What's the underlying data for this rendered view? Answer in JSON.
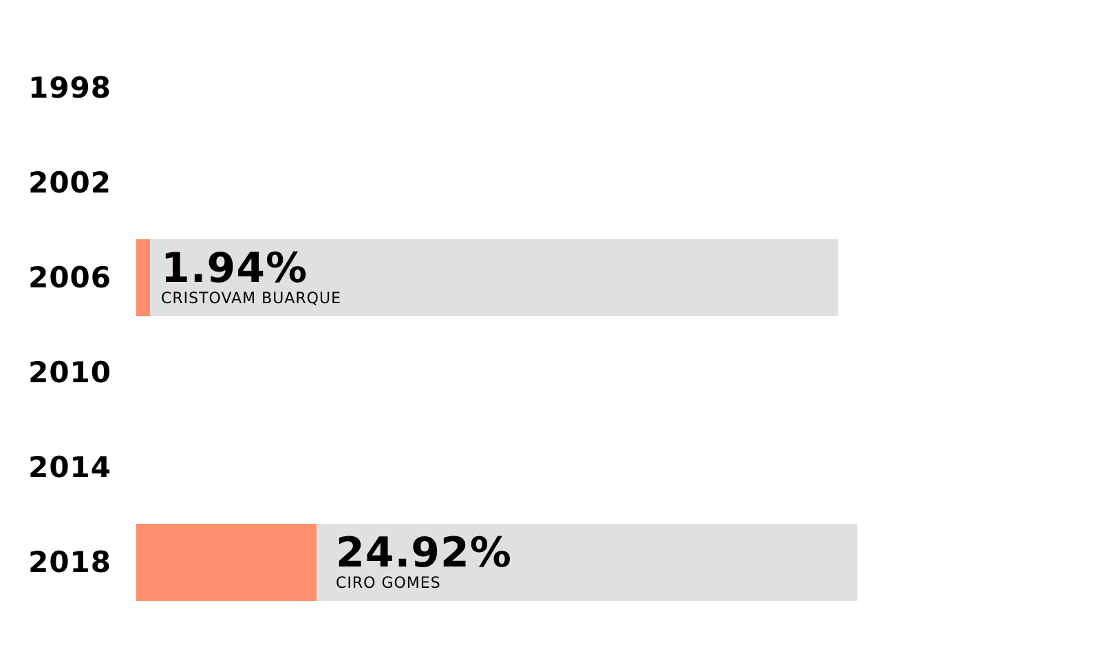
{
  "chart_data": {
    "type": "bar",
    "orientation": "horizontal",
    "categories": [
      "1998",
      "2002",
      "2006",
      "2010",
      "2014",
      "2018"
    ],
    "rows": [
      {
        "year": "1998",
        "value": null,
        "value_label": "",
        "candidate": ""
      },
      {
        "year": "2002",
        "value": null,
        "value_label": "",
        "candidate": ""
      },
      {
        "year": "2006",
        "value": 1.94,
        "value_label": "1.94%",
        "candidate": "CRISTOVAM BUARQUE"
      },
      {
        "year": "2010",
        "value": null,
        "value_label": "",
        "candidate": ""
      },
      {
        "year": "2014",
        "value": null,
        "value_label": "",
        "candidate": ""
      },
      {
        "year": "2018",
        "value": 24.92,
        "value_label": "24.92%",
        "candidate": "CIRO GOMES"
      }
    ],
    "xlim": [
      0,
      100
    ],
    "grid": false,
    "legend": "none",
    "colors": {
      "fill": "#ff8f6e",
      "track": "#e0e0e0",
      "text": "#000000",
      "background": "#ffffff"
    }
  }
}
